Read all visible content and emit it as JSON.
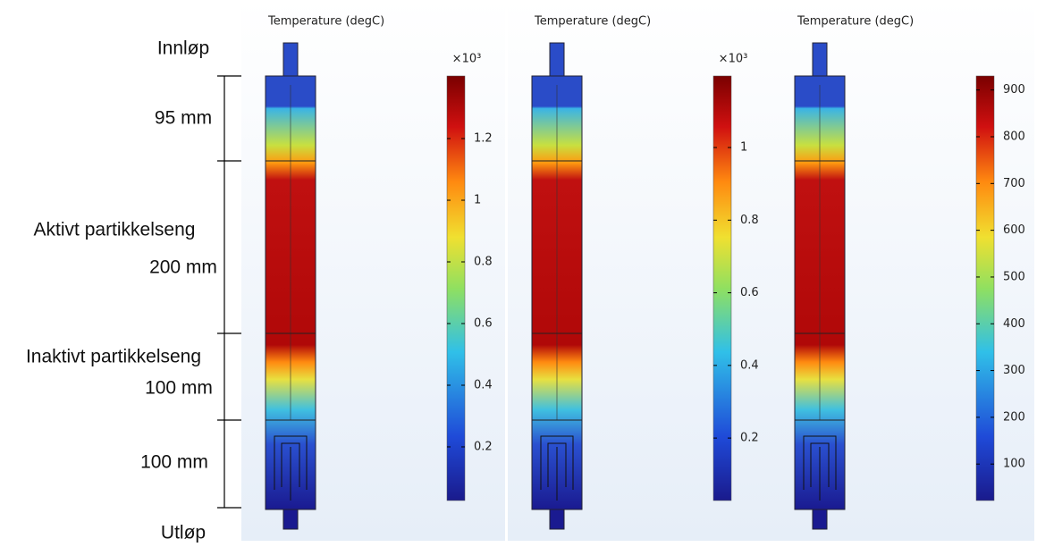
{
  "annotations": {
    "inlet": "Innløp",
    "section_1": "95 mm",
    "active_bed": "Aktivt partikkelseng",
    "section_2": "200 mm",
    "inactive_bed": "Inaktivt partikkelseng",
    "section_3": "100 mm",
    "section_4": "100 mm",
    "outlet": "Utløp"
  },
  "panels": [
    {
      "title": "Temperature (degC)",
      "multiplier": "×10³",
      "colorbar": {
        "lim": [
          0.026,
          1.403
        ],
        "ticks": [
          0.2,
          0.4,
          0.6,
          0.8,
          1,
          1.2
        ]
      }
    },
    {
      "title": "Temperature (degC)",
      "multiplier": "×10³",
      "colorbar": {
        "lim": [
          0.028,
          1.197
        ],
        "ticks": [
          0.2,
          0.4,
          0.6,
          0.8,
          1
        ]
      }
    },
    {
      "title": "Temperature (degC)",
      "colorbar": {
        "lim": [
          22,
          930
        ],
        "ticks": [
          100,
          200,
          300,
          400,
          500,
          600,
          700,
          800,
          900
        ]
      }
    }
  ]
}
